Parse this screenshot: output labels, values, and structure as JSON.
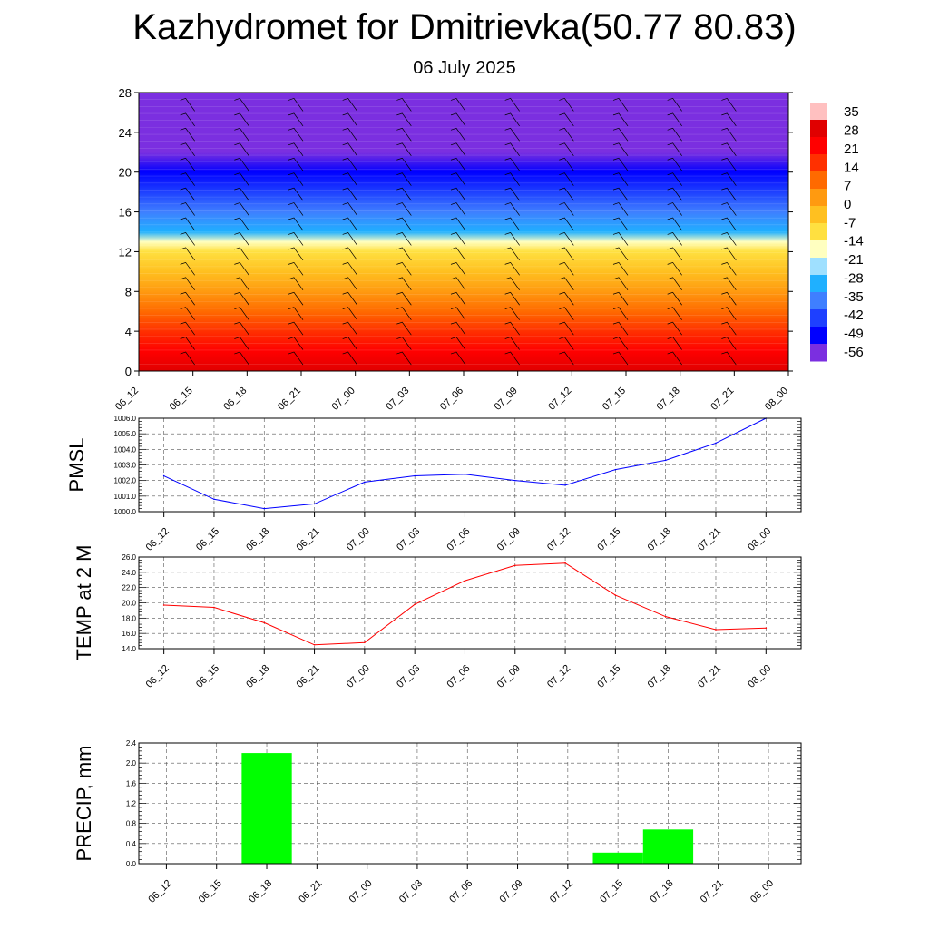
{
  "header": {
    "title": "Kazhydromet for Dmitrievka(50.77 80.83)",
    "subtitle": "06 July 2025"
  },
  "colors": {
    "pmsl_line": "#0000ff",
    "temp_line": "#ff0000",
    "precip_bar": "#00ff00",
    "temp_scale": [
      "#7b2fe0",
      "#0000ff",
      "#1e40ff",
      "#3f7fff",
      "#1fb0ff",
      "#9fe0ff",
      "#ffffc0",
      "#ffe040",
      "#ffc020",
      "#ff9a10",
      "#ff6a00",
      "#ff3000",
      "#ff0000",
      "#e00000",
      "#ffc0c0"
    ]
  },
  "chart_data": [
    {
      "type": "heatmap",
      "name": "upper-air",
      "x": [
        "06_12",
        "06_15",
        "06_18",
        "06_21",
        "07_00",
        "07_03",
        "07_06",
        "07_09",
        "07_12",
        "07_15",
        "07_18",
        "07_21",
        "08_00"
      ],
      "y_ticks": [
        "0",
        "4",
        "8",
        "12",
        "16",
        "20",
        "24",
        "28"
      ],
      "ylim": [
        0,
        28
      ],
      "colorbar_labels": [
        "35",
        "28",
        "21",
        "14",
        "7",
        "0",
        "-7",
        "-14",
        "-21",
        "-28",
        "-35",
        "-42",
        "-49",
        "-56"
      ],
      "level_temps": [
        {
          "level": 0,
          "value": 30
        },
        {
          "level": 2,
          "value": 24
        },
        {
          "level": 4,
          "value": 17
        },
        {
          "level": 6,
          "value": 11
        },
        {
          "level": 8,
          "value": 4
        },
        {
          "level": 10,
          "value": -2
        },
        {
          "level": 12,
          "value": -9
        },
        {
          "level": 13,
          "value": -18
        },
        {
          "level": 14,
          "value": -26
        },
        {
          "level": 16,
          "value": -37
        },
        {
          "level": 18,
          "value": -44
        },
        {
          "level": 20,
          "value": -50
        },
        {
          "level": 22,
          "value": -55
        },
        {
          "level": 24,
          "value": -56
        },
        {
          "level": 28,
          "value": -58
        }
      ]
    },
    {
      "type": "line",
      "name": "pmsl",
      "ylabel": "PMSL",
      "x": [
        "06_12",
        "06_15",
        "06_18",
        "06_21",
        "07_00",
        "07_03",
        "07_06",
        "07_09",
        "07_12",
        "07_15",
        "07_18",
        "07_21",
        "08_00"
      ],
      "values": [
        1002.3,
        1000.8,
        1000.2,
        1000.5,
        1001.9,
        1002.3,
        1002.4,
        1002.0,
        1001.7,
        1002.7,
        1003.3,
        1004.4,
        1006.0
      ],
      "ylim": [
        1000.0,
        1006.0
      ],
      "y_ticks": [
        "1000.0",
        "1001.0",
        "1002.0",
        "1003.0",
        "1004.0",
        "1005.0",
        "1006.0"
      ],
      "grid": true
    },
    {
      "type": "line",
      "name": "temp",
      "ylabel": "TEMP at 2 M",
      "x": [
        "06_12",
        "06_15",
        "06_18",
        "06_21",
        "07_00",
        "07_03",
        "07_06",
        "07_09",
        "07_12",
        "07_15",
        "07_18",
        "07_21",
        "08_00"
      ],
      "values": [
        19.7,
        19.4,
        17.4,
        14.5,
        14.8,
        19.8,
        22.9,
        24.9,
        25.2,
        21.0,
        18.2,
        16.5,
        16.7
      ],
      "ylim": [
        14.0,
        26.0
      ],
      "y_ticks": [
        "14.0",
        "16.0",
        "18.0",
        "20.0",
        "22.0",
        "24.0",
        "26.0"
      ],
      "grid": true
    },
    {
      "type": "bar",
      "name": "precip",
      "ylabel": "PRECIP, mm",
      "x": [
        "06_12",
        "06_15",
        "06_18",
        "06_21",
        "07_00",
        "07_03",
        "07_06",
        "07_09",
        "07_12",
        "07_15",
        "07_18",
        "07_21",
        "08_00"
      ],
      "values": [
        0,
        0,
        2.2,
        0,
        0,
        0,
        0,
        0,
        0,
        0.22,
        0.68,
        0,
        0
      ],
      "ylim": [
        0.0,
        2.4
      ],
      "y_ticks": [
        "0.0",
        "0.4",
        "0.8",
        "1.2",
        "1.6",
        "2.0",
        "2.4"
      ],
      "grid": true
    }
  ]
}
